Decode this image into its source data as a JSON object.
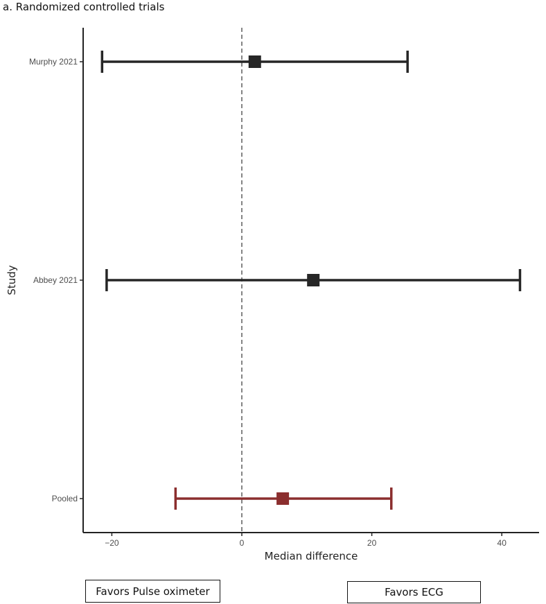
{
  "panel_title": "a. Randomized controlled trials",
  "favors": {
    "left": "Favors Pulse oximeter",
    "right": "Favors ECG"
  },
  "colors": {
    "study": "#262626",
    "pooled": "#8b2e2e",
    "axis": "#222222",
    "reference_line": "#666666"
  },
  "chart_data": {
    "type": "forest",
    "xlabel": "Median difference",
    "ylabel": "Study",
    "xlim": [
      -25,
      46
    ],
    "x_ticks": [
      -20,
      0,
      20,
      40
    ],
    "x_tick_labels": [
      "−20",
      "0",
      "20",
      "40"
    ],
    "reference_line": 0,
    "grid": false,
    "studies": [
      {
        "label": "Murphy 2021",
        "estimate": 2.0,
        "lower": -21.5,
        "upper": 25.5,
        "pooled": false
      },
      {
        "label": "Abbey 2021",
        "estimate": 11.0,
        "lower": -20.8,
        "upper": 42.8,
        "pooled": false
      },
      {
        "label": "Pooled",
        "estimate": 6.3,
        "lower": -10.2,
        "upper": 23.0,
        "pooled": true
      }
    ]
  }
}
